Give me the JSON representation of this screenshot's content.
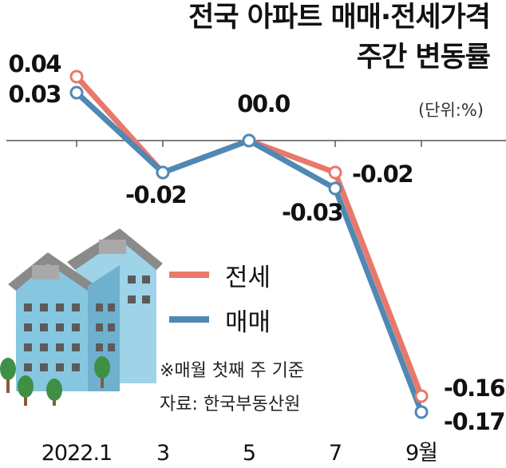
{
  "chart_data": {
    "type": "line",
    "title": "전국 아파트 매매·전세가격",
    "subtitle": "주간 변동률",
    "unit": "(단위:%)",
    "categories": [
      "2022.1",
      "",
      "3",
      "",
      "5",
      "",
      "7",
      "",
      "9월"
    ],
    "series": [
      {
        "name": "전세",
        "color": "#e8786a",
        "points": [
          {
            "x": 0,
            "y": 0.04
          },
          {
            "x": 2,
            "y": -0.02
          },
          {
            "x": 4,
            "y": 0.0
          },
          {
            "x": 6,
            "y": -0.02
          },
          {
            "x": 8,
            "y": -0.16
          }
        ]
      },
      {
        "name": "매매",
        "color": "#4f88b4",
        "points": [
          {
            "x": 0,
            "y": 0.03
          },
          {
            "x": 2,
            "y": -0.02
          },
          {
            "x": 4,
            "y": 0.0
          },
          {
            "x": 6,
            "y": -0.03
          },
          {
            "x": 8,
            "y": -0.17
          }
        ]
      }
    ],
    "value_labels": [
      "0.04",
      "0.03",
      "-0.02",
      "00.0",
      "-0.02",
      "-0.03",
      "-0.16",
      "-0.17"
    ],
    "ylim": [
      -0.18,
      0.05
    ],
    "legend_position": "center-left",
    "notes": [
      "※매월 첫째 주 기준",
      "자료: 한국부동산원"
    ]
  }
}
